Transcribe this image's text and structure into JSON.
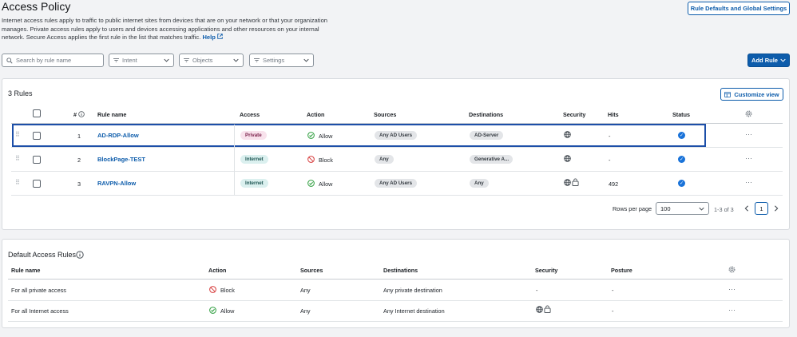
{
  "header": {
    "title": "Access Policy",
    "description": "Internet access rules apply to traffic to public internet sites from devices that are on your network or that your organization manages. Private access rules apply to users and devices accessing applications and other resources on your internal network. Secure Access applies the first rule in the list that matches traffic.",
    "help_label": "Help",
    "rule_defaults_button": "Rule Defaults and Global Settings"
  },
  "filters": {
    "search_placeholder": "Search by rule name",
    "intent_label": "Intent",
    "objects_label": "Objects",
    "settings_label": "Settings",
    "add_rule_label": "Add Rule"
  },
  "rules_card": {
    "title": "3 Rules",
    "customize_label": "Customize view",
    "columns": {
      "num": "#",
      "name": "Rule name",
      "access": "Access",
      "action": "Action",
      "sources": "Sources",
      "destinations": "Destinations",
      "security": "Security",
      "hits": "Hits",
      "status": "Status"
    },
    "rows": [
      {
        "num": "1",
        "name": "AD-RDP-Allow",
        "access": "Private",
        "action": "Allow",
        "sources": "Any AD Users",
        "destinations": "AD-Server",
        "security_icons": [
          "globe-icon"
        ],
        "hits": "-",
        "status": "enabled",
        "selected": true
      },
      {
        "num": "2",
        "name": "BlockPage-TEST",
        "access": "Internet",
        "action": "Block",
        "sources": "Any",
        "destinations": "Generative A...",
        "security_icons": [
          "globe-icon"
        ],
        "hits": "-",
        "status": "enabled",
        "selected": false
      },
      {
        "num": "3",
        "name": "RAVPN-Allow",
        "access": "Internet",
        "action": "Allow",
        "sources": "Any AD Users",
        "destinations": "Any",
        "security_icons": [
          "globe-icon",
          "lock-icon"
        ],
        "hits": "492",
        "status": "enabled",
        "selected": false
      }
    ],
    "pagination": {
      "rows_per_page_label": "Rows per page",
      "rows_per_page_value": "100",
      "range": "1-3 of 3",
      "current_page": "1"
    }
  },
  "default_card": {
    "title": "Default Access Rules",
    "columns": {
      "name": "Rule name",
      "action": "Action",
      "sources": "Sources",
      "destinations": "Destinations",
      "security": "Security",
      "posture": "Posture"
    },
    "rows": [
      {
        "name": "For all private access",
        "action": "Block",
        "sources": "Any",
        "destinations": "Any private destination",
        "security": "-",
        "posture": "-"
      },
      {
        "name": "For all Internet access",
        "action": "Allow",
        "sources": "Any",
        "destinations": "Any Internet destination",
        "security": "",
        "posture": "-"
      }
    ]
  },
  "colors": {
    "accent": "#0d5cab",
    "allow": "#2e9e3e",
    "block": "#d63b3b",
    "status": "#1a73d9"
  }
}
